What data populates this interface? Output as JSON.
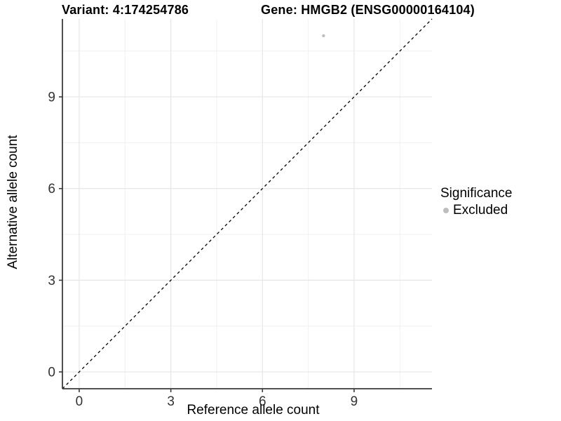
{
  "chart_data": {
    "type": "scatter",
    "titles": {
      "left": "Variant: 4:174254786",
      "right": "Gene: HMGB2 (ENSG00000164104)"
    },
    "xlabel": "Reference allele count",
    "ylabel": "Alternative allele count",
    "xlim": [
      -0.55,
      11.55
    ],
    "ylim": [
      -0.55,
      11.55
    ],
    "xticks": [
      0,
      3,
      6,
      9
    ],
    "yticks": [
      0,
      3,
      6,
      9
    ],
    "x_minor_ticks": [
      1.5,
      4.5,
      7.5,
      10.5
    ],
    "y_minor_ticks": [
      1.5,
      4.5,
      7.5,
      10.5
    ],
    "grid": true,
    "axis_lines": [
      "left",
      "bottom"
    ],
    "series": [
      {
        "name": "Excluded",
        "color": "#bebebe",
        "marker": "circle",
        "marker_radius": 2.2,
        "points": [
          {
            "x": 8,
            "y": 11
          }
        ]
      }
    ],
    "reference_line": {
      "type": "identity",
      "linetype": "dashed",
      "color": "#000000"
    },
    "legend": {
      "position": "right",
      "title": "Significance",
      "items": [
        {
          "label": "Excluded",
          "color": "#bebebe",
          "marker": "circle"
        }
      ]
    },
    "colors": {
      "background": "#ffffff",
      "grid_major": "#e6e6e6",
      "grid_minor": "#f0f0f0",
      "axis_line": "#3a3a3a",
      "tick_mark": "#3a3a3a",
      "tick_label": "#333333",
      "title": "#000000"
    }
  }
}
